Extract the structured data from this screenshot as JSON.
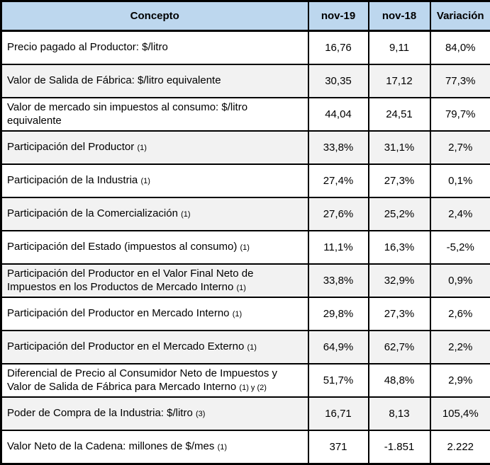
{
  "colors": {
    "header_bg": "#BDD7EE",
    "alt_row_bg": "#F2F2F2",
    "border": "#000000"
  },
  "table": {
    "headers": {
      "concept": "Concepto",
      "nov19": "nov-19",
      "nov18": "nov-18",
      "variation": "Variación"
    },
    "rows": [
      {
        "concept": "Precio pagado al Productor: $/litro",
        "note": "",
        "nov19": "16,76",
        "nov18": "9,11",
        "variation": "84,0%"
      },
      {
        "concept": "Valor de Salida de Fábrica: $/litro equivalente",
        "note": "",
        "nov19": "30,35",
        "nov18": "17,12",
        "variation": "77,3%"
      },
      {
        "concept": "Valor de mercado sin impuestos al consumo: $/litro equivalente",
        "note": "",
        "nov19": "44,04",
        "nov18": "24,51",
        "variation": "79,7%"
      },
      {
        "concept": "Participación del Productor",
        "note": "(1)",
        "nov19": "33,8%",
        "nov18": "31,1%",
        "variation": "2,7%"
      },
      {
        "concept": "Participación de la Industria",
        "note": "(1)",
        "nov19": "27,4%",
        "nov18": "27,3%",
        "variation": "0,1%"
      },
      {
        "concept": "Participación de la Comercialización",
        "note": "(1)",
        "nov19": "27,6%",
        "nov18": "25,2%",
        "variation": "2,4%"
      },
      {
        "concept": "Participación del Estado (impuestos al consumo)",
        "note": "(1)",
        "nov19": "11,1%",
        "nov18": "16,3%",
        "variation": "-5,2%"
      },
      {
        "concept": "Participación del Productor en el Valor Final Neto de Impuestos en los Productos de Mercado Interno",
        "note": "(1)",
        "nov19": "33,8%",
        "nov18": "32,9%",
        "variation": "0,9%"
      },
      {
        "concept": "Participación del Productor en Mercado Interno",
        "note": "(1)",
        "nov19": "29,8%",
        "nov18": "27,3%",
        "variation": "2,6%"
      },
      {
        "concept": "Participación del Productor en el Mercado Externo",
        "note": "(1)",
        "nov19": "64,9%",
        "nov18": "62,7%",
        "variation": "2,2%"
      },
      {
        "concept": "Diferencial de Precio al Consumidor Neto de Impuestos y Valor de Salida de Fábrica para Mercado Interno",
        "note": "(1) y (2)",
        "nov19": "51,7%",
        "nov18": "48,8%",
        "variation": "2,9%"
      },
      {
        "concept": "Poder de Compra de la Industria: $/litro",
        "note": "(3)",
        "nov19": "16,71",
        "nov18": "8,13",
        "variation": "105,4%"
      },
      {
        "concept": "Valor Neto de la Cadena: millones de $/mes",
        "note": "(1)",
        "nov19": "371",
        "nov18": "-1.851",
        "variation": "2.222"
      }
    ]
  }
}
